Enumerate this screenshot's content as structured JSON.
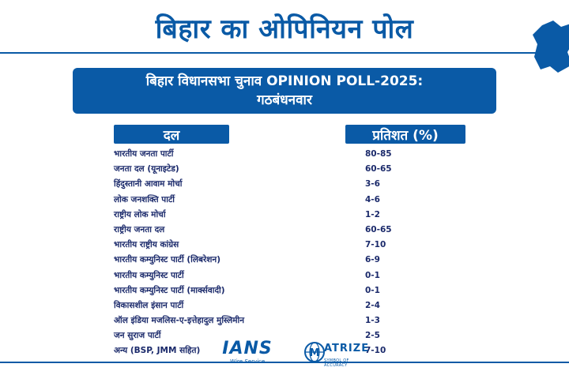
{
  "header": {
    "title": "बिहार का ओपिनियन पोल"
  },
  "banner": {
    "line1": "बिहार विधानसभा चुनाव OPINION POLL-2025:",
    "line2": "गठबंधनवार"
  },
  "table": {
    "col_party": "दल",
    "col_pct": "प्रतिशत (%)",
    "rows": [
      {
        "party": "भारतीय जनता पार्टी",
        "value": "80-85"
      },
      {
        "party": "जनता दल (यूनाइटेड)",
        "value": "60-65"
      },
      {
        "party": "हिंदुस्तानी आवाम मोर्चा",
        "value": "3-6"
      },
      {
        "party": "लोक जनशक्ति पार्टी",
        "value": "4-6"
      },
      {
        "party": "राष्ट्रीय लोक मोर्चा",
        "value": "1-2"
      },
      {
        "party": "राष्ट्रीय जनता दल",
        "value": "60-65"
      },
      {
        "party": "भारतीय राष्ट्रीय कांग्रेस",
        "value": "7-10"
      },
      {
        "party": "भारतीय कम्युनिस्ट पार्टी (लिबरेशन)",
        "value": "6-9"
      },
      {
        "party": "भारतीय कम्युनिस्ट पार्टी",
        "value": "0-1"
      },
      {
        "party": "भारतीय कम्युनिस्ट पार्टी (मार्क्सवादी)",
        "value": "0-1"
      },
      {
        "party": "विकासशील इंसान पार्टी",
        "value": "2-4"
      },
      {
        "party": "ऑल इंडिया मजलिस-ए-इत्तेहादुल मुस्लिमीन",
        "value": "1-3"
      },
      {
        "party": "जन सुराज पार्टी",
        "value": "2-5"
      },
      {
        "party": "अन्य (BSP, JMM सहित)",
        "value": "7-10"
      }
    ]
  },
  "footer": {
    "ians_brand": "IANS",
    "ians_sub": "Wire Service",
    "matrize_brand": "ATRIZE",
    "matrize_tag": "SYMBOL OF ACCURACY"
  },
  "colors": {
    "accent": "#0a5aa6",
    "text": "#1b2a6b"
  }
}
